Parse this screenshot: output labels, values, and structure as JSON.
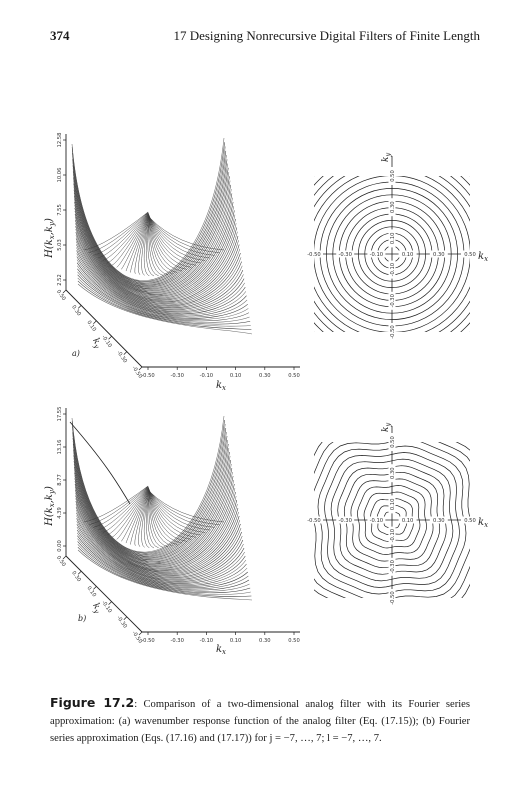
{
  "header": {
    "page_number": "374",
    "running_title": "17 Designing Nonrecursive Digital Filters of Finite Length"
  },
  "figure": {
    "panels": [
      {
        "letter": "a)",
        "surface_z_ticks": [
          "12.58",
          "10.06",
          "7.55",
          "5.03",
          "2.52"
        ],
        "ky_ticks": [
          "0.50",
          "0.30",
          "0.10",
          "-0.10",
          "-0.30",
          "-0.50"
        ],
        "kx_ticks": [
          "-0.50",
          "-0.30",
          "-0.10",
          "0.10",
          "0.30",
          "0.50"
        ],
        "contour_x_ticks": [
          "-0.50",
          "-0.30",
          "-0.10",
          "0.10",
          "0.30",
          "0.50"
        ],
        "contour_y_ticks": [
          "0.50",
          "0.30",
          "0.10",
          "-0.10",
          "-0.30",
          "-0.50"
        ]
      },
      {
        "letter": "b)",
        "surface_z_ticks": [
          "17.55",
          "13.16",
          "8.77",
          "4.39",
          "0.00"
        ],
        "ky_ticks": [
          "0.50",
          "0.30",
          "0.10",
          "-0.10",
          "-0.30",
          "-0.50"
        ],
        "kx_ticks": [
          "-0.50",
          "-0.30",
          "-0.10",
          "0.10",
          "0.30",
          "0.50"
        ],
        "contour_x_ticks": [
          "-0.50",
          "-0.30",
          "-0.10",
          "0.10",
          "0.30",
          "0.50"
        ],
        "contour_y_ticks": [
          "0.50",
          "0.30",
          "0.10",
          "-0.10",
          "-0.30",
          "-0.50"
        ]
      }
    ],
    "labels": {
      "z_axis": "H(kx,ky)",
      "kx": "kx",
      "ky": "ky"
    },
    "colors": {
      "ink": "#1e1e1e",
      "surface_dark": "#3a3a3a",
      "surface_mid": "#6a6a6a"
    }
  },
  "caption": {
    "label": "Figure 17.2",
    "text": ": Comparison of a two-dimensional analog filter with its Fourier series approximation: (a) wavenumber response function of the analog filter (Eq. (17.15)); (b) Fourier series approximation (Eqs. (17.16) and (17.17)) for j = −7, …, 7; l = −7, …, 7."
  }
}
